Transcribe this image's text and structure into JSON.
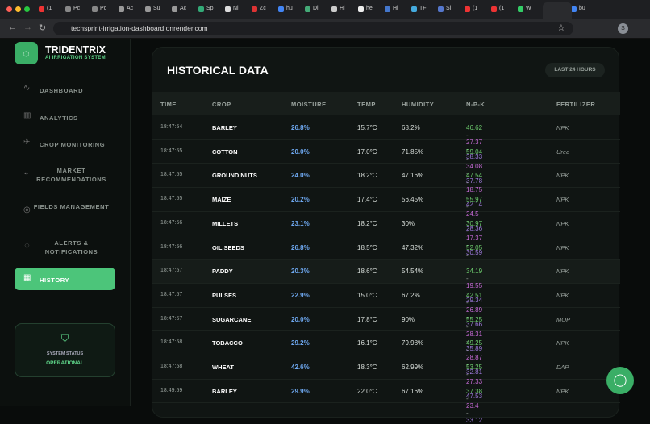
{
  "browser": {
    "tabs": [
      "(1",
      "Pc",
      "Pc",
      "Ac",
      "Su",
      "Ac",
      "Sp",
      "Ni",
      "Zc",
      "hu",
      "Di",
      "Hi",
      "he",
      "Hi",
      "TF",
      "Sl",
      "(1",
      "(1",
      "W",
      "bu"
    ],
    "url": "techsprint-irrigation-dashboard.onrender.com",
    "profile_initial": "S"
  },
  "sidebar": {
    "brand": "TRIDENTRIX",
    "tagline": "AI IRRIGATION SYSTEM",
    "nav": [
      "DASHBOARD",
      "ANALYTICS",
      "CROP MONITORING",
      "MARKET RECOMMENDATIONS",
      "FIELDS MANAGEMENT",
      "ALERTS & NOTIFICATIONS",
      "HISTORY"
    ],
    "status": {
      "label": "SYSTEM STATUS",
      "value": "OPERATIONAL"
    }
  },
  "main": {
    "title": "HISTORICAL DATA",
    "badge": "LAST 24 HOURS",
    "table": {
      "headers": [
        "TIME",
        "CROP",
        "MOISTURE",
        "TEMP",
        "HUMIDITY",
        "N-P-K",
        "FERTILIZER"
      ],
      "npk_separator": "-",
      "rows": [
        [
          "18:47:54",
          "BARLEY",
          "26.8%",
          "15.7°C",
          "68.2%",
          [
            "46.62",
            "27.37",
            "38.33"
          ],
          "NPK"
        ],
        [
          "18:47:55",
          "COTTON",
          "20.0%",
          "17.0°C",
          "71.85%",
          [
            "59.04",
            "34.08",
            "37.78"
          ],
          "Urea"
        ],
        [
          "18:47:55",
          "GROUND NUTS",
          "24.0%",
          "18.2°C",
          "47.16%",
          [
            "47.54",
            "18.75",
            "42.14"
          ],
          "NPK"
        ],
        [
          "18:47:55",
          "MAIZE",
          "20.2%",
          "17.4°C",
          "56.45%",
          [
            "55.97",
            "24.5",
            "28.36"
          ],
          "NPK"
        ],
        [
          "18:47:56",
          "MILLETS",
          "23.1%",
          "18.2°C",
          "30%",
          [
            "30.97",
            "17.37",
            "30.59"
          ],
          "NPK"
        ],
        [
          "18:47:56",
          "OIL SEEDS",
          "26.8%",
          "18.5°C",
          "47.32%",
          [
            "52.05",
            "18.32",
            "35.21"
          ],
          "NPK"
        ],
        [
          "18:47:57",
          "PADDY",
          "20.3%",
          "18.6°C",
          "54.54%",
          [
            "34.19",
            "19.55",
            "29.34"
          ],
          "NPK"
        ],
        [
          "18:47:57",
          "PULSES",
          "22.9%",
          "15.0°C",
          "67.2%",
          [
            "42.51",
            "26.89",
            "37.66"
          ],
          "NPK"
        ],
        [
          "18:47:57",
          "SUGARCANE",
          "20.0%",
          "17.8°C",
          "90%",
          [
            "55.25",
            "28.31",
            "35.89"
          ],
          "MOP"
        ],
        [
          "18:47:58",
          "TOBACCO",
          "29.2%",
          "16.1°C",
          "79.98%",
          [
            "49.25",
            "28.87",
            "32.81"
          ],
          "NPK"
        ],
        [
          "18:47:58",
          "WHEAT",
          "42.6%",
          "18.3°C",
          "62.99%",
          [
            "53.25",
            "27.33",
            "47.53"
          ],
          "DAP"
        ],
        [
          "18:49:59",
          "BARLEY",
          "29.9%",
          "22.0°C",
          "67.16%",
          [
            "37.38",
            "23.4",
            "33.12"
          ],
          "NPK"
        ]
      ]
    }
  }
}
